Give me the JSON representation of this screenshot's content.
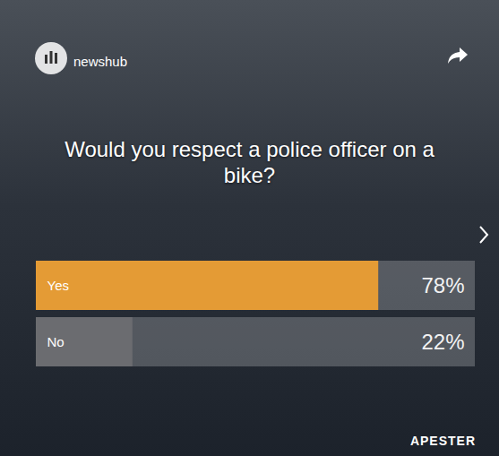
{
  "chart_data": {
    "type": "bar",
    "orientation": "horizontal",
    "title": "Would you respect a police officer on a bike?",
    "categories": [
      "Yes",
      "No"
    ],
    "values": [
      78,
      22
    ],
    "value_labels": [
      "78%",
      "22%"
    ],
    "colors": [
      "#e49b35",
      "#6b6c70"
    ],
    "xlim": [
      0,
      100
    ],
    "data_labels": true,
    "tick_labels": false,
    "grid": false,
    "annotations": [
      "newshub",
      "APESTER"
    ]
  }
}
